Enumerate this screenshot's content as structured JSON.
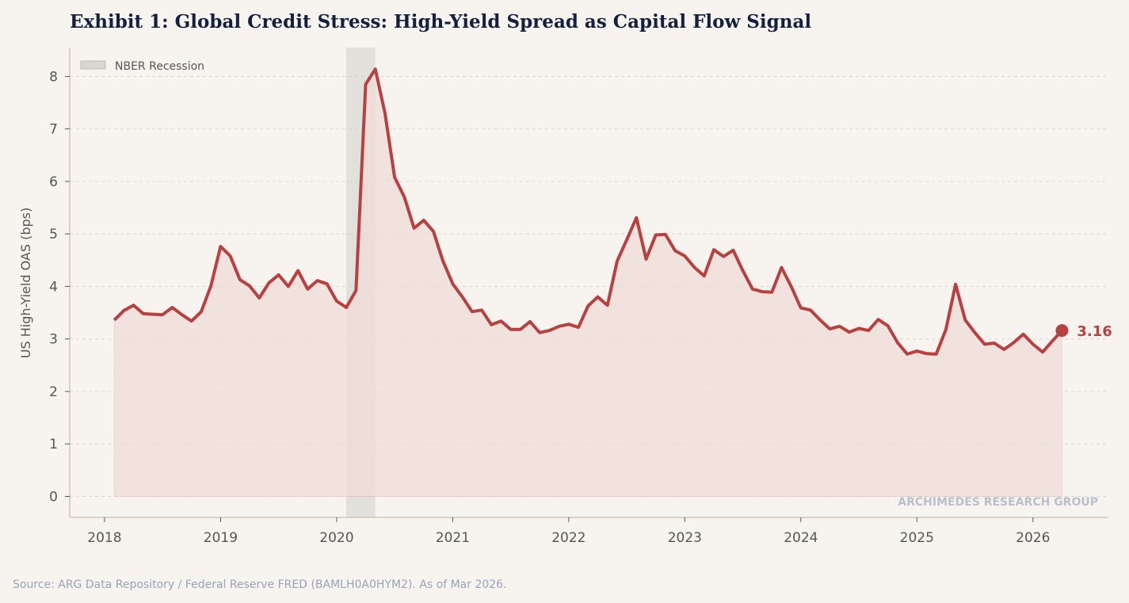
{
  "chart_data": {
    "type": "area",
    "title": "Exhibit 1: Global Credit Stress: High-Yield Spread as Capital Flow Signal",
    "xlabel": "",
    "ylabel": "US High-Yield OAS (bps)",
    "xlim": [
      2017.7,
      2026.65
    ],
    "ylim": [
      -0.4,
      8.55
    ],
    "x_ticks": [
      "2018",
      "2019",
      "2020",
      "2021",
      "2022",
      "2023",
      "2024",
      "2025",
      "2026"
    ],
    "y_ticks": [
      "0",
      "1",
      "2",
      "3",
      "4",
      "5",
      "6",
      "7",
      "8"
    ],
    "grid": "horizontal dashed",
    "legend": {
      "placement": "top-left",
      "entries": [
        "NBER Recession"
      ]
    },
    "recession": {
      "label": "NBER Recession",
      "start": "2020-02",
      "end": "2020-04",
      "color": "#c8c8c3"
    },
    "series": [
      {
        "color": "#b94040",
        "fill_color": "#f0dcd8",
        "x": [
          "2018-01",
          "2018-02",
          "2018-03",
          "2018-04",
          "2018-05",
          "2018-06",
          "2018-07",
          "2018-08",
          "2018-09",
          "2018-10",
          "2018-11",
          "2018-12",
          "2019-01",
          "2019-02",
          "2019-03",
          "2019-04",
          "2019-05",
          "2019-06",
          "2019-07",
          "2019-08",
          "2019-09",
          "2019-10",
          "2019-11",
          "2019-12",
          "2020-01",
          "2020-02",
          "2020-03",
          "2020-04",
          "2020-05",
          "2020-06",
          "2020-07",
          "2020-08",
          "2020-09",
          "2020-10",
          "2020-11",
          "2020-12",
          "2021-01",
          "2021-02",
          "2021-03",
          "2021-04",
          "2021-05",
          "2021-06",
          "2021-07",
          "2021-08",
          "2021-09",
          "2021-10",
          "2021-11",
          "2021-12",
          "2022-01",
          "2022-02",
          "2022-03",
          "2022-04",
          "2022-05",
          "2022-06",
          "2022-07",
          "2022-08",
          "2022-09",
          "2022-10",
          "2022-11",
          "2022-12",
          "2023-01",
          "2023-02",
          "2023-03",
          "2023-04",
          "2023-05",
          "2023-06",
          "2023-07",
          "2023-08",
          "2023-09",
          "2023-10",
          "2023-11",
          "2023-12",
          "2024-01",
          "2024-02",
          "2024-03",
          "2024-04",
          "2024-05",
          "2024-06",
          "2024-07",
          "2024-08",
          "2024-09",
          "2024-10",
          "2024-11",
          "2024-12",
          "2025-01",
          "2025-02",
          "2025-03",
          "2025-04",
          "2025-05",
          "2025-06",
          "2025-07",
          "2025-08",
          "2025-09",
          "2025-10",
          "2025-11",
          "2025-12",
          "2026-01",
          "2026-02",
          "2026-03"
        ],
        "values": [
          3.36,
          3.54,
          3.64,
          3.48,
          3.47,
          3.46,
          3.6,
          3.46,
          3.34,
          3.52,
          4.01,
          4.76,
          4.58,
          4.13,
          4.01,
          3.78,
          4.07,
          4.22,
          4.0,
          4.3,
          3.95,
          4.11,
          4.05,
          3.72,
          3.6,
          3.92,
          7.85,
          8.14,
          7.3,
          6.08,
          5.7,
          5.11,
          5.26,
          5.05,
          4.48,
          4.05,
          3.8,
          3.52,
          3.55,
          3.27,
          3.34,
          3.18,
          3.18,
          3.33,
          3.12,
          3.16,
          3.24,
          3.28,
          3.22,
          3.63,
          3.8,
          3.64,
          4.48,
          4.89,
          5.31,
          4.52,
          4.98,
          4.99,
          4.68,
          4.58,
          4.36,
          4.2,
          4.7,
          4.57,
          4.69,
          4.3,
          3.95,
          3.9,
          3.89,
          4.36,
          4.0,
          3.59,
          3.55,
          3.36,
          3.19,
          3.24,
          3.13,
          3.2,
          3.16,
          3.37,
          3.25,
          2.93,
          2.71,
          2.77,
          2.72,
          2.71,
          3.18,
          4.04,
          3.36,
          3.12,
          2.9,
          2.92,
          2.8,
          2.93,
          3.09,
          2.9,
          2.75,
          2.96,
          3.16
        ]
      }
    ],
    "annotations": [
      {
        "text": "3.16",
        "x": "2026-03",
        "y": 3.16
      }
    ],
    "watermark": "ARCHIMEDES RESEARCH GROUP",
    "source": "Source: ARG Data Repository / Federal Reserve FRED (BAMLH0A0HYM2). As of Mar 2026."
  }
}
